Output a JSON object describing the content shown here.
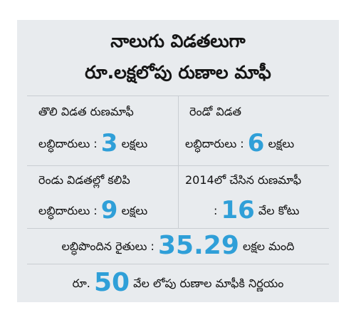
{
  "header": {
    "line1": "నాలుగు విడతలుగా",
    "line2": "రూ.లక్షలోపు రుణాల మాఫీ"
  },
  "cells": [
    {
      "label": "తొలి విడత రుణమాఫీ",
      "prefix": "లబ్ధిదారులు :",
      "value": "3",
      "suffix": "లక్షలు"
    },
    {
      "label": "రెండో విడత",
      "prefix": "లబ్ధిదారులు :",
      "value": "6",
      "suffix": "లక్షలు"
    },
    {
      "label": "రెండు విడతల్లో కలిపి",
      "prefix": "లబ్ధిదారులు :",
      "value": "9",
      "suffix": "లక్షలు"
    },
    {
      "label": "2014లో చేసిన రుణమాఫీ",
      "prefix": ":",
      "value": "16",
      "suffix": "వేల కోటు"
    }
  ],
  "beneficiaries": {
    "prefix": "లబ్ధిపొందిన రైతులు :",
    "value": "35.29",
    "suffix": "లక్షల మంది"
  },
  "footer": {
    "prefix": "రూ.",
    "value": "50",
    "suffix": "వేల లోపు రుణాల మాఫీకి నిర్ణయం"
  },
  "colors": {
    "accent": "#2f9fd8",
    "panel": "#e8ebee",
    "divider": "#c9cdd2"
  }
}
